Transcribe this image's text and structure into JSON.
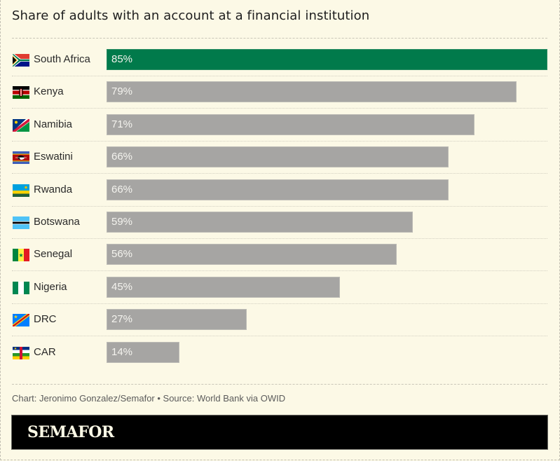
{
  "header": {
    "title": "Share of adults with an account at a financial institution"
  },
  "footer": {
    "credit": "Chart: Jeronimo Gonzalez/Semafor • Source: World Bank via OWID"
  },
  "brand": {
    "name": "SEMAFOR"
  },
  "colors": {
    "background": "#fcf9e6",
    "highlight_bar": "#017a4b",
    "default_bar": "#a6a5a3",
    "brand_bar": "#000000"
  },
  "rows": [
    {
      "country": "South Africa",
      "value": 85,
      "label": "85%",
      "flag": "south-africa-flag",
      "highlight": true
    },
    {
      "country": "Kenya",
      "value": 79,
      "label": "79%",
      "flag": "kenya-flag",
      "highlight": false
    },
    {
      "country": "Namibia",
      "value": 71,
      "label": "71%",
      "flag": "namibia-flag",
      "highlight": false
    },
    {
      "country": "Eswatini",
      "value": 66,
      "label": "66%",
      "flag": "eswatini-flag",
      "highlight": false
    },
    {
      "country": "Rwanda",
      "value": 66,
      "label": "66%",
      "flag": "rwanda-flag",
      "highlight": false
    },
    {
      "country": "Botswana",
      "value": 59,
      "label": "59%",
      "flag": "botswana-flag",
      "highlight": false
    },
    {
      "country": "Senegal",
      "value": 56,
      "label": "56%",
      "flag": "senegal-flag",
      "highlight": false
    },
    {
      "country": "Nigeria",
      "value": 45,
      "label": "45%",
      "flag": "nigeria-flag",
      "highlight": false
    },
    {
      "country": "DRC",
      "value": 27,
      "label": "27%",
      "flag": "drc-flag",
      "highlight": false
    },
    {
      "country": "CAR",
      "value": 14,
      "label": "14%",
      "flag": "car-flag",
      "highlight": false
    }
  ],
  "chart_data": {
    "type": "bar",
    "orientation": "horizontal",
    "title": "Share of adults with an account at a financial institution",
    "categories": [
      "South Africa",
      "Kenya",
      "Namibia",
      "Eswatini",
      "Rwanda",
      "Botswana",
      "Senegal",
      "Nigeria",
      "DRC",
      "CAR"
    ],
    "values": [
      85,
      79,
      71,
      66,
      66,
      59,
      56,
      45,
      27,
      14
    ],
    "unit": "%",
    "highlighted": [
      "South Africa"
    ],
    "xlabel": "",
    "ylabel": "",
    "xlim": [
      0,
      85
    ],
    "grid": false,
    "legend": null,
    "source": "World Bank via OWID",
    "credit": "Jeronimo Gonzalez/Semafor"
  }
}
